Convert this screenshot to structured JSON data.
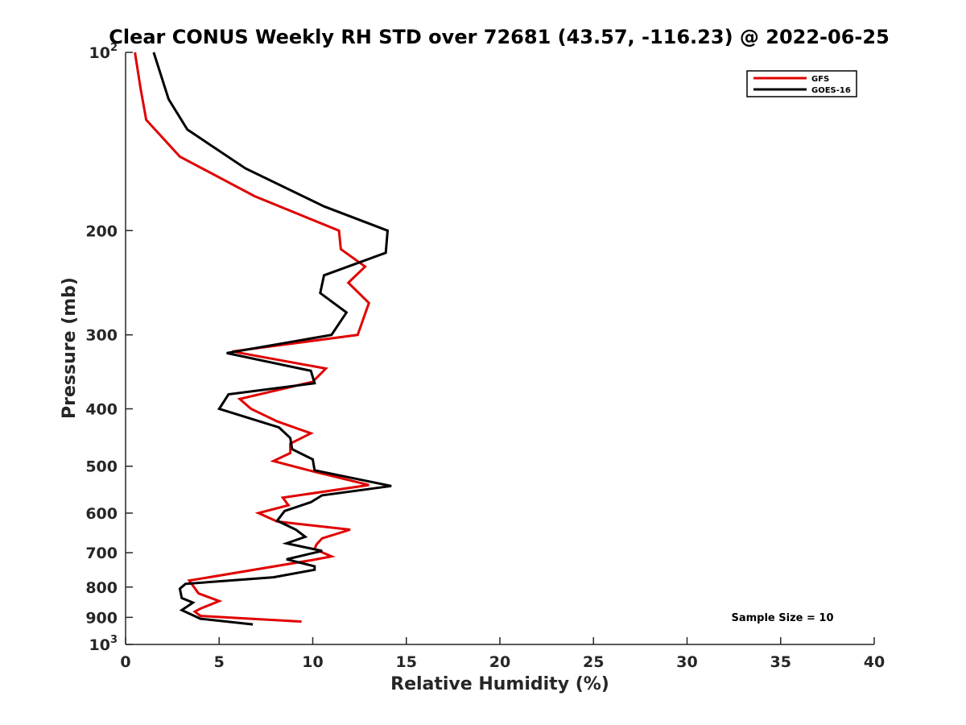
{
  "chart_data": {
    "type": "line",
    "title": "Clear CONUS Weekly RH STD over 72681 (43.57, -116.23) @ 2022-06-25",
    "xlabel": "Relative Humidity (%)",
    "ylabel": "Pressure (mb)",
    "xlim": [
      0,
      40
    ],
    "ylim": [
      100,
      1000
    ],
    "y_scale": "log",
    "y_reversed": false,
    "grid": false,
    "legend_position": "top-right",
    "x_ticks": [
      0,
      5,
      10,
      15,
      20,
      25,
      30,
      35,
      40
    ],
    "x_tick_labels": [
      "0",
      "5",
      "10",
      "15",
      "20",
      "25",
      "30",
      "35",
      "40"
    ],
    "y_ticks": [
      100,
      200,
      300,
      400,
      500,
      600,
      700,
      800,
      900,
      1000
    ],
    "y_tick_labels": [
      {
        "base": "10",
        "sup": "2"
      },
      {
        "base": "200",
        "sup": ""
      },
      {
        "base": "300",
        "sup": ""
      },
      {
        "base": "400",
        "sup": ""
      },
      {
        "base": "500",
        "sup": ""
      },
      {
        "base": "600",
        "sup": ""
      },
      {
        "base": "700",
        "sup": ""
      },
      {
        "base": "800",
        "sup": ""
      },
      {
        "base": "900",
        "sup": ""
      },
      {
        "base": "10",
        "sup": "3"
      }
    ],
    "annotation": "Sample Size = 10",
    "series": [
      {
        "name": "GFS",
        "color": "#e00000",
        "points": [
          [
            0.5,
            100
          ],
          [
            0.8,
            115
          ],
          [
            1.1,
            130
          ],
          [
            2.9,
            150
          ],
          [
            6.9,
            175
          ],
          [
            11.4,
            200
          ],
          [
            11.5,
            215
          ],
          [
            12.8,
            230
          ],
          [
            11.9,
            245
          ],
          [
            13.0,
            265
          ],
          [
            12.4,
            300
          ],
          [
            5.7,
            320
          ],
          [
            10.7,
            342
          ],
          [
            10.0,
            360
          ],
          [
            6.1,
            385
          ],
          [
            6.7,
            400
          ],
          [
            8.1,
            420
          ],
          [
            9.9,
            440
          ],
          [
            8.8,
            458
          ],
          [
            8.8,
            475
          ],
          [
            7.9,
            490
          ],
          [
            10.0,
            510
          ],
          [
            13.0,
            538
          ],
          [
            8.4,
            565
          ],
          [
            8.7,
            582
          ],
          [
            7.1,
            600
          ],
          [
            8.1,
            620
          ],
          [
            12.0,
            640
          ],
          [
            10.5,
            662
          ],
          [
            10.2,
            678
          ],
          [
            10.1,
            690
          ],
          [
            11.0,
            710
          ],
          [
            10.0,
            720
          ],
          [
            3.4,
            780
          ],
          [
            3.9,
            820
          ],
          [
            5.0,
            845
          ],
          [
            4.0,
            870
          ],
          [
            3.7,
            880
          ],
          [
            4.0,
            895
          ],
          [
            9.4,
            915
          ]
        ]
      },
      {
        "name": "GOES-16",
        "color": "#000000",
        "points": [
          [
            1.5,
            100
          ],
          [
            2.3,
            120
          ],
          [
            3.3,
            135
          ],
          [
            6.4,
            157
          ],
          [
            10.6,
            182
          ],
          [
            14.0,
            200
          ],
          [
            13.9,
            218
          ],
          [
            10.6,
            238
          ],
          [
            10.4,
            255
          ],
          [
            11.8,
            275
          ],
          [
            11.0,
            300
          ],
          [
            5.4,
            322
          ],
          [
            9.9,
            345
          ],
          [
            10.1,
            362
          ],
          [
            5.5,
            378
          ],
          [
            5.0,
            400
          ],
          [
            8.2,
            430
          ],
          [
            8.8,
            448
          ],
          [
            8.9,
            468
          ],
          [
            10.0,
            487
          ],
          [
            10.1,
            508
          ],
          [
            14.2,
            540
          ],
          [
            10.5,
            560
          ],
          [
            9.9,
            575
          ],
          [
            8.5,
            595
          ],
          [
            8.1,
            618
          ],
          [
            9.1,
            640
          ],
          [
            9.6,
            658
          ],
          [
            8.6,
            675
          ],
          [
            10.5,
            695
          ],
          [
            8.6,
            718
          ],
          [
            10.1,
            738
          ],
          [
            10.1,
            748
          ],
          [
            7.9,
            770
          ],
          [
            3.2,
            790
          ],
          [
            2.9,
            805
          ],
          [
            3.0,
            835
          ],
          [
            3.6,
            850
          ],
          [
            3.0,
            875
          ],
          [
            4.0,
            905
          ],
          [
            6.8,
            925
          ]
        ]
      }
    ]
  }
}
